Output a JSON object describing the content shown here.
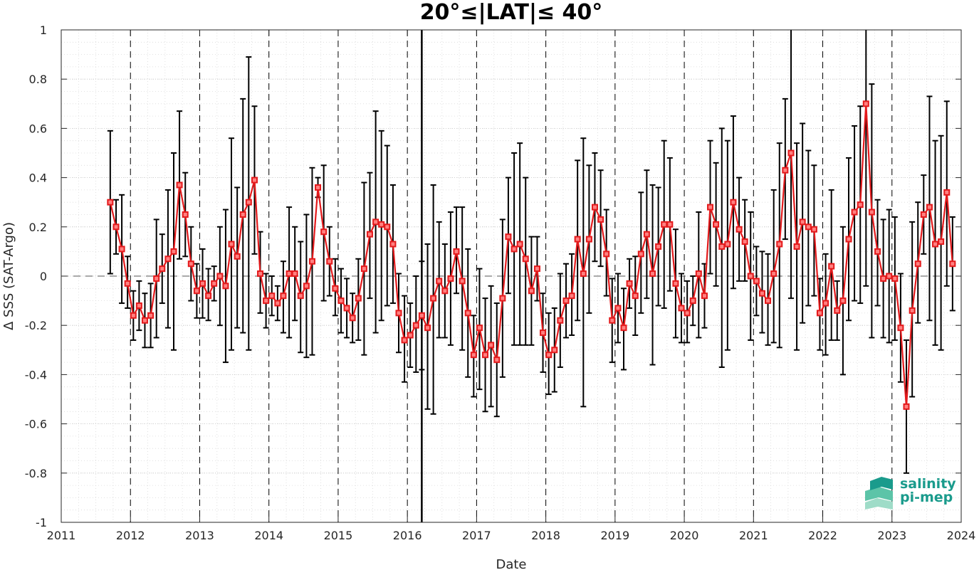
{
  "chart_data": {
    "type": "line",
    "title": "20°≤|LAT|≤ 40°",
    "xlabel": "Date",
    "ylabel": "Δ SSS (SAT-Argo)",
    "xlim": [
      2011,
      2024
    ],
    "ylim": [
      -1,
      1
    ],
    "x_ticks": [
      "2011",
      "2012",
      "2013",
      "2014",
      "2015",
      "2016",
      "2017",
      "2018",
      "2019",
      "2020",
      "2021",
      "2022",
      "2023",
      "2024"
    ],
    "y_ticks": [
      "1",
      "0.8",
      "0.6",
      "0.4",
      "0.2",
      "0",
      "-0.2",
      "-0.4",
      "-0.6",
      "-0.8",
      "-1"
    ],
    "grid": true,
    "reference_line": 0,
    "series": [
      {
        "color": "#e41a1c",
        "marker": "square",
        "error_bar_color": "#000000",
        "points": [
          {
            "x": 2011.708,
            "y": 0.3,
            "lo": 0.01,
            "hi": 0.59
          },
          {
            "x": 2011.792,
            "y": 0.2,
            "lo": 0.09,
            "hi": 0.31
          },
          {
            "x": 2011.875,
            "y": 0.11,
            "lo": -0.11,
            "hi": 0.33
          },
          {
            "x": 2011.958,
            "y": -0.03,
            "lo": -0.13,
            "hi": 0.08
          },
          {
            "x": 2012.042,
            "y": -0.16,
            "lo": -0.26,
            "hi": -0.06
          },
          {
            "x": 2012.125,
            "y": -0.12,
            "lo": -0.22,
            "hi": -0.02
          },
          {
            "x": 2012.208,
            "y": -0.18,
            "lo": -0.29,
            "hi": -0.07
          },
          {
            "x": 2012.292,
            "y": -0.16,
            "lo": -0.29,
            "hi": -0.03
          },
          {
            "x": 2012.375,
            "y": -0.01,
            "lo": -0.25,
            "hi": 0.23
          },
          {
            "x": 2012.458,
            "y": 0.03,
            "lo": -0.11,
            "hi": 0.17
          },
          {
            "x": 2012.542,
            "y": 0.07,
            "lo": -0.21,
            "hi": 0.35
          },
          {
            "x": 2012.625,
            "y": 0.1,
            "lo": -0.3,
            "hi": 0.5
          },
          {
            "x": 2012.708,
            "y": 0.37,
            "lo": 0.07,
            "hi": 0.67
          },
          {
            "x": 2012.792,
            "y": 0.25,
            "lo": 0.08,
            "hi": 0.42
          },
          {
            "x": 2012.875,
            "y": 0.05,
            "lo": -0.1,
            "hi": 0.2
          },
          {
            "x": 2012.958,
            "y": -0.06,
            "lo": -0.17,
            "hi": 0.05
          },
          {
            "x": 2013.042,
            "y": -0.03,
            "lo": -0.17,
            "hi": 0.11
          },
          {
            "x": 2013.125,
            "y": -0.08,
            "lo": -0.18,
            "hi": 0.03
          },
          {
            "x": 2013.208,
            "y": -0.03,
            "lo": -0.1,
            "hi": 0.04
          },
          {
            "x": 2013.292,
            "y": 0.0,
            "lo": -0.2,
            "hi": 0.2
          },
          {
            "x": 2013.375,
            "y": -0.04,
            "lo": -0.35,
            "hi": 0.27
          },
          {
            "x": 2013.458,
            "y": 0.13,
            "lo": -0.3,
            "hi": 0.56
          },
          {
            "x": 2013.542,
            "y": 0.08,
            "lo": -0.21,
            "hi": 0.36
          },
          {
            "x": 2013.625,
            "y": 0.25,
            "lo": -0.23,
            "hi": 0.72
          },
          {
            "x": 2013.708,
            "y": 0.3,
            "lo": -0.3,
            "hi": 0.89
          },
          {
            "x": 2013.792,
            "y": 0.39,
            "lo": 0.09,
            "hi": 0.69
          },
          {
            "x": 2013.875,
            "y": 0.01,
            "lo": -0.15,
            "hi": 0.18
          },
          {
            "x": 2013.958,
            "y": -0.1,
            "lo": -0.21,
            "hi": 0.01
          },
          {
            "x": 2014.042,
            "y": -0.08,
            "lo": -0.16,
            "hi": 0.0
          },
          {
            "x": 2014.125,
            "y": -0.11,
            "lo": -0.18,
            "hi": -0.04
          },
          {
            "x": 2014.208,
            "y": -0.08,
            "lo": -0.23,
            "hi": 0.06
          },
          {
            "x": 2014.292,
            "y": 0.01,
            "lo": -0.25,
            "hi": 0.28
          },
          {
            "x": 2014.375,
            "y": 0.01,
            "lo": -0.18,
            "hi": 0.2
          },
          {
            "x": 2014.458,
            "y": -0.08,
            "lo": -0.31,
            "hi": 0.14
          },
          {
            "x": 2014.542,
            "y": -0.04,
            "lo": -0.33,
            "hi": 0.25
          },
          {
            "x": 2014.625,
            "y": 0.06,
            "lo": -0.32,
            "hi": 0.44
          },
          {
            "x": 2014.708,
            "y": 0.36,
            "lo": 0.32,
            "hi": 0.4
          },
          {
            "x": 2014.792,
            "y": 0.18,
            "lo": -0.1,
            "hi": 0.45
          },
          {
            "x": 2014.875,
            "y": 0.06,
            "lo": -0.08,
            "hi": 0.2
          },
          {
            "x": 2014.958,
            "y": -0.05,
            "lo": -0.16,
            "hi": 0.07
          },
          {
            "x": 2015.042,
            "y": -0.1,
            "lo": -0.23,
            "hi": 0.03
          },
          {
            "x": 2015.125,
            "y": -0.13,
            "lo": -0.25,
            "hi": -0.01
          },
          {
            "x": 2015.208,
            "y": -0.17,
            "lo": -0.27,
            "hi": -0.07
          },
          {
            "x": 2015.292,
            "y": -0.09,
            "lo": -0.26,
            "hi": 0.07
          },
          {
            "x": 2015.375,
            "y": 0.03,
            "lo": -0.32,
            "hi": 0.38
          },
          {
            "x": 2015.458,
            "y": 0.17,
            "lo": -0.09,
            "hi": 0.42
          },
          {
            "x": 2015.542,
            "y": 0.22,
            "lo": -0.23,
            "hi": 0.67
          },
          {
            "x": 2015.625,
            "y": 0.21,
            "lo": -0.18,
            "hi": 0.59
          },
          {
            "x": 2015.708,
            "y": 0.2,
            "lo": -0.12,
            "hi": 0.53
          },
          {
            "x": 2015.792,
            "y": 0.13,
            "lo": -0.11,
            "hi": 0.37
          },
          {
            "x": 2015.875,
            "y": -0.15,
            "lo": -0.31,
            "hi": 0.01
          },
          {
            "x": 2015.958,
            "y": -0.26,
            "lo": -0.43,
            "hi": -0.08
          },
          {
            "x": 2016.042,
            "y": -0.24,
            "lo": -0.37,
            "hi": -0.11
          },
          {
            "x": 2016.125,
            "y": -0.2,
            "lo": -0.39,
            "hi": 0.0
          },
          {
            "x": 2016.208,
            "y": -0.16,
            "lo": -0.38,
            "hi": 0.06
          },
          {
            "x": 2016.292,
            "y": -0.21,
            "lo": -0.54,
            "hi": 0.13
          },
          {
            "x": 2016.375,
            "y": -0.09,
            "lo": -0.56,
            "hi": 0.37
          },
          {
            "x": 2016.458,
            "y": -0.02,
            "lo": -0.25,
            "hi": 0.22
          },
          {
            "x": 2016.542,
            "y": -0.06,
            "lo": -0.25,
            "hi": 0.13
          },
          {
            "x": 2016.625,
            "y": -0.01,
            "lo": -0.28,
            "hi": 0.26
          },
          {
            "x": 2016.708,
            "y": 0.1,
            "lo": -0.07,
            "hi": 0.28
          },
          {
            "x": 2016.792,
            "y": -0.02,
            "lo": -0.3,
            "hi": 0.28
          },
          {
            "x": 2016.875,
            "y": -0.15,
            "lo": -0.41,
            "hi": 0.11
          },
          {
            "x": 2016.958,
            "y": -0.32,
            "lo": -0.49,
            "hi": -0.16
          },
          {
            "x": 2017.042,
            "y": -0.21,
            "lo": -0.46,
            "hi": 0.03
          },
          {
            "x": 2017.125,
            "y": -0.32,
            "lo": -0.55,
            "hi": -0.09
          },
          {
            "x": 2017.208,
            "y": -0.28,
            "lo": -0.53,
            "hi": -0.04
          },
          {
            "x": 2017.292,
            "y": -0.34,
            "lo": -0.57,
            "hi": -0.11
          },
          {
            "x": 2017.375,
            "y": -0.09,
            "lo": -0.41,
            "hi": 0.23
          },
          {
            "x": 2017.458,
            "y": 0.16,
            "lo": -0.07,
            "hi": 0.4
          },
          {
            "x": 2017.542,
            "y": 0.11,
            "lo": -0.28,
            "hi": 0.5
          },
          {
            "x": 2017.625,
            "y": 0.13,
            "lo": -0.28,
            "hi": 0.54
          },
          {
            "x": 2017.708,
            "y": 0.07,
            "lo": -0.28,
            "hi": 0.4
          },
          {
            "x": 2017.792,
            "y": -0.06,
            "lo": -0.28,
            "hi": 0.16
          },
          {
            "x": 2017.875,
            "y": 0.03,
            "lo": -0.1,
            "hi": 0.16
          },
          {
            "x": 2017.958,
            "y": -0.23,
            "lo": -0.39,
            "hi": -0.07
          },
          {
            "x": 2018.042,
            "y": -0.32,
            "lo": -0.48,
            "hi": -0.15
          },
          {
            "x": 2018.125,
            "y": -0.3,
            "lo": -0.47,
            "hi": -0.13
          },
          {
            "x": 2018.208,
            "y": -0.18,
            "lo": -0.37,
            "hi": 0.01
          },
          {
            "x": 2018.292,
            "y": -0.1,
            "lo": -0.25,
            "hi": 0.05
          },
          {
            "x": 2018.375,
            "y": -0.08,
            "lo": -0.24,
            "hi": 0.09
          },
          {
            "x": 2018.458,
            "y": 0.15,
            "lo": -0.18,
            "hi": 0.47
          },
          {
            "x": 2018.542,
            "y": 0.01,
            "lo": -0.53,
            "hi": 0.56
          },
          {
            "x": 2018.625,
            "y": 0.15,
            "lo": -0.15,
            "hi": 0.45
          },
          {
            "x": 2018.708,
            "y": 0.28,
            "lo": 0.06,
            "hi": 0.5
          },
          {
            "x": 2018.792,
            "y": 0.23,
            "lo": 0.04,
            "hi": 0.43
          },
          {
            "x": 2018.875,
            "y": 0.09,
            "lo": -0.08,
            "hi": 0.27
          },
          {
            "x": 2018.958,
            "y": -0.18,
            "lo": -0.35,
            "hi": -0.01
          },
          {
            "x": 2019.042,
            "y": -0.13,
            "lo": -0.27,
            "hi": 0.01
          },
          {
            "x": 2019.125,
            "y": -0.21,
            "lo": -0.38,
            "hi": -0.05
          },
          {
            "x": 2019.208,
            "y": -0.03,
            "lo": -0.13,
            "hi": 0.07
          },
          {
            "x": 2019.292,
            "y": -0.08,
            "lo": -0.24,
            "hi": 0.08
          },
          {
            "x": 2019.375,
            "y": 0.09,
            "lo": -0.15,
            "hi": 0.34
          },
          {
            "x": 2019.458,
            "y": 0.17,
            "lo": -0.09,
            "hi": 0.43
          },
          {
            "x": 2019.542,
            "y": 0.01,
            "lo": -0.36,
            "hi": 0.37
          },
          {
            "x": 2019.625,
            "y": 0.12,
            "lo": -0.12,
            "hi": 0.36
          },
          {
            "x": 2019.708,
            "y": 0.21,
            "lo": -0.13,
            "hi": 0.55
          },
          {
            "x": 2019.792,
            "y": 0.21,
            "lo": -0.06,
            "hi": 0.48
          },
          {
            "x": 2019.875,
            "y": -0.03,
            "lo": -0.25,
            "hi": 0.19
          },
          {
            "x": 2019.958,
            "y": -0.13,
            "lo": -0.27,
            "hi": 0.01
          },
          {
            "x": 2020.042,
            "y": -0.15,
            "lo": -0.27,
            "hi": -0.02
          },
          {
            "x": 2020.125,
            "y": -0.1,
            "lo": -0.2,
            "hi": 0.0
          },
          {
            "x": 2020.208,
            "y": 0.01,
            "lo": -0.25,
            "hi": 0.26
          },
          {
            "x": 2020.292,
            "y": -0.08,
            "lo": -0.21,
            "hi": 0.05
          },
          {
            "x": 2020.375,
            "y": 0.28,
            "lo": 0.01,
            "hi": 0.55
          },
          {
            "x": 2020.458,
            "y": 0.21,
            "lo": -0.04,
            "hi": 0.46
          },
          {
            "x": 2020.542,
            "y": 0.12,
            "lo": -0.37,
            "hi": 0.6
          },
          {
            "x": 2020.625,
            "y": 0.13,
            "lo": -0.3,
            "hi": 0.55
          },
          {
            "x": 2020.708,
            "y": 0.3,
            "lo": -0.05,
            "hi": 0.65
          },
          {
            "x": 2020.792,
            "y": 0.19,
            "lo": -0.02,
            "hi": 0.4
          },
          {
            "x": 2020.875,
            "y": 0.14,
            "lo": -0.02,
            "hi": 0.31
          },
          {
            "x": 2020.958,
            "y": 0.0,
            "lo": -0.26,
            "hi": 0.26
          },
          {
            "x": 2021.042,
            "y": -0.02,
            "lo": -0.16,
            "hi": 0.12
          },
          {
            "x": 2021.125,
            "y": -0.07,
            "lo": -0.23,
            "hi": 0.1
          },
          {
            "x": 2021.208,
            "y": -0.1,
            "lo": -0.28,
            "hi": 0.09
          },
          {
            "x": 2021.292,
            "y": 0.01,
            "lo": -0.27,
            "hi": 0.35
          },
          {
            "x": 2021.375,
            "y": 0.13,
            "lo": -0.29,
            "hi": 0.54
          },
          {
            "x": 2021.458,
            "y": 0.43,
            "lo": 0.15,
            "hi": 0.72
          },
          {
            "x": 2021.542,
            "y": 0.5,
            "lo": -0.09,
            "hi": 1.1
          },
          {
            "x": 2021.625,
            "y": 0.12,
            "lo": -0.3,
            "hi": 0.54
          },
          {
            "x": 2021.708,
            "y": 0.22,
            "lo": -0.19,
            "hi": 0.62
          },
          {
            "x": 2021.792,
            "y": 0.2,
            "lo": -0.12,
            "hi": 0.51
          },
          {
            "x": 2021.875,
            "y": 0.19,
            "lo": -0.08,
            "hi": 0.45
          },
          {
            "x": 2021.958,
            "y": -0.15,
            "lo": -0.3,
            "hi": -0.01
          },
          {
            "x": 2022.042,
            "y": -0.11,
            "lo": -0.32,
            "hi": 0.09
          },
          {
            "x": 2022.125,
            "y": 0.04,
            "lo": -0.26,
            "hi": 0.35
          },
          {
            "x": 2022.208,
            "y": -0.14,
            "lo": -0.26,
            "hi": -0.02
          },
          {
            "x": 2022.292,
            "y": -0.1,
            "lo": -0.4,
            "hi": 0.2
          },
          {
            "x": 2022.375,
            "y": 0.15,
            "lo": -0.18,
            "hi": 0.48
          },
          {
            "x": 2022.458,
            "y": 0.26,
            "lo": -0.1,
            "hi": 0.61
          },
          {
            "x": 2022.542,
            "y": 0.29,
            "lo": -0.11,
            "hi": 0.69
          },
          {
            "x": 2022.625,
            "y": 0.7,
            "lo": -0.04,
            "hi": 1.1
          },
          {
            "x": 2022.708,
            "y": 0.26,
            "lo": -0.25,
            "hi": 0.78
          },
          {
            "x": 2022.792,
            "y": 0.1,
            "lo": -0.12,
            "hi": 0.31
          },
          {
            "x": 2022.875,
            "y": -0.01,
            "lo": -0.25,
            "hi": 0.23
          },
          {
            "x": 2022.958,
            "y": 0.0,
            "lo": -0.27,
            "hi": 0.27
          },
          {
            "x": 2023.042,
            "y": -0.01,
            "lo": -0.26,
            "hi": 0.24
          },
          {
            "x": 2023.125,
            "y": -0.21,
            "lo": -0.43,
            "hi": 0.01
          },
          {
            "x": 2023.208,
            "y": -0.53,
            "lo": -0.8,
            "hi": -0.26
          },
          {
            "x": 2023.292,
            "y": -0.14,
            "lo": -0.49,
            "hi": 0.22
          },
          {
            "x": 2023.375,
            "y": 0.05,
            "lo": -0.19,
            "hi": 0.3
          },
          {
            "x": 2023.458,
            "y": 0.25,
            "lo": 0.09,
            "hi": 0.41
          },
          {
            "x": 2023.542,
            "y": 0.28,
            "lo": -0.18,
            "hi": 0.73
          },
          {
            "x": 2023.625,
            "y": 0.13,
            "lo": -0.28,
            "hi": 0.55
          },
          {
            "x": 2023.708,
            "y": 0.14,
            "lo": -0.3,
            "hi": 0.57
          },
          {
            "x": 2023.792,
            "y": 0.34,
            "lo": -0.04,
            "hi": 0.71
          },
          {
            "x": 2023.875,
            "y": 0.05,
            "lo": -0.14,
            "hi": 0.24
          }
        ]
      }
    ],
    "special_lines": [
      {
        "x": 2016.208,
        "ylo": -1.1,
        "yhi": 1.1,
        "color": "#000000"
      }
    ]
  },
  "logo": {
    "line1": "salinity",
    "line2": "pi-mep",
    "colors": [
      "#1a9b8c",
      "#5cc4a8",
      "#9fdcc8"
    ]
  }
}
